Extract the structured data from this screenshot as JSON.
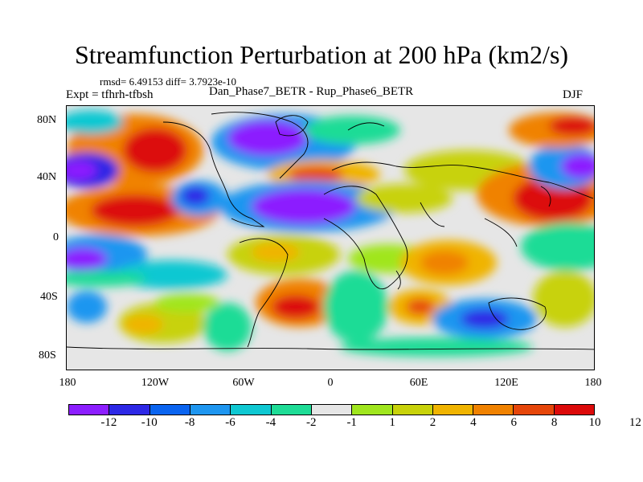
{
  "title": "Streamfunction Perturbation at 200 hPa (km2/s)",
  "stats": "rmsd= 6.49153 diff= 3.7923e-10",
  "expt": "Expt = tfhrh-tfbsh",
  "subtitle": "Dan_Phase7_BETR - Rup_Phase6_BETR",
  "season": "DJF",
  "y_ticks": [
    "80N",
    "40N",
    "0",
    "40S",
    "80S"
  ],
  "x_ticks": [
    "180",
    "120W",
    "60W",
    "0",
    "60E",
    "120E",
    "180"
  ],
  "colorbar": {
    "colors": [
      "#8c1eff",
      "#2d28e6",
      "#0a64f0",
      "#1e96f0",
      "#0fc8d2",
      "#1edc96",
      "#e6e6e6",
      "#a0e61e",
      "#c8d20a",
      "#f0b400",
      "#f08200",
      "#e6460a",
      "#dc0a0a"
    ],
    "labels": [
      "-12",
      "-10",
      "-8",
      "-6",
      "-4",
      "-2",
      "-1",
      "1",
      "2",
      "4",
      "6",
      "8",
      "10",
      "12"
    ]
  }
}
